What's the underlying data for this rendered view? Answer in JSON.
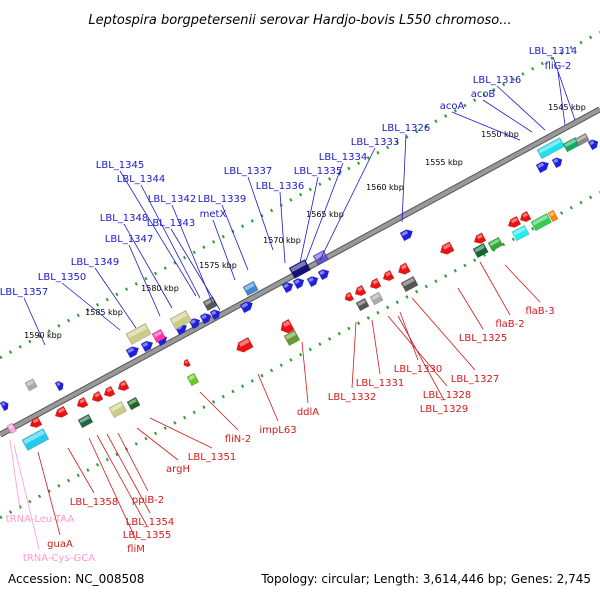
{
  "title": "Leptospira borgpetersenii serovar Hardjo-bovis L550 chromoso...",
  "footer": {
    "accession": "Accession: NC_008508",
    "summary": "Topology: circular; Length: 3,614,446 bp; Genes: 2,745"
  },
  "colors": {
    "forward_label": "#1a1acc",
    "reverse_label": "#d11a1a",
    "rna_label": "#ff99cc",
    "backbone": "#999999",
    "tick": "#2e9e2e"
  },
  "ticks": [
    "1545 kbp",
    "1550 kbp",
    "1555 kbp",
    "1560 kbp",
    "1565 kbp",
    "1570 kbp",
    "1575 kbp",
    "1580 kbp",
    "1585 kbp",
    "1590 kbp"
  ],
  "forward_labels": [
    "LBL_1314",
    "fliG-2",
    "LBL_1316",
    "acoB",
    "acoA",
    "LBL_1326",
    "LBL_1333",
    "LBL_1334",
    "LBL_1335",
    "LBL_1336",
    "LBL_1337",
    "LBL_1345",
    "LBL_1344",
    "LBL_1342",
    "LBL_1343",
    "LBL_1339",
    "metX",
    "LBL_1348",
    "LBL_1347",
    "LBL_1349",
    "LBL_1350",
    "LBL_1357"
  ],
  "reverse_labels": [
    "flaB-3",
    "flaB-2",
    "LBL_1325",
    "LBL_1327",
    "LBL_1330",
    "LBL_1328",
    "LBL_1329",
    "LBL_1331",
    "LBL_1332",
    "ddlA",
    "impL63",
    "fliN-2",
    "LBL_1351",
    "argH",
    "ppiB-2",
    "LBL_1354",
    "LBL_1355",
    "fliM",
    "LBL_1358",
    "guaA"
  ],
  "rna_labels": [
    "tRNA-Leu-TAA",
    "tRNA-Cys-GCA"
  ]
}
